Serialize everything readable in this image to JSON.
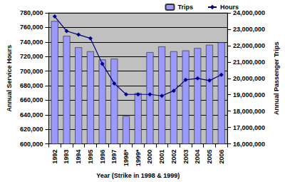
{
  "chart_data": {
    "type": "bar",
    "categories": [
      "1992",
      "1993",
      "1994",
      "1995",
      "1996",
      "1997",
      "1998*",
      "1999*",
      "2000",
      "2001",
      "2002",
      "2003",
      "2004",
      "2005",
      "2006"
    ],
    "x_label": "Year (Strike in 1998 & 1999)",
    "y_label": "Annual Service Hours",
    "y2_label": "Annual Passenger Trips",
    "series": [
      {
        "name": "Trips",
        "type": "bar",
        "axis": "y2",
        "color": "#9999FF",
        "values": [
          23500000,
          22600000,
          21900000,
          21650000,
          21150000,
          21200000,
          17700000,
          19100000,
          21600000,
          21950000,
          21650000,
          21700000,
          21850000,
          22050000,
          22200000
        ]
      },
      {
        "name": "Hours",
        "type": "line",
        "color": "#000080",
        "marker": "diamond",
        "values": [
          775000,
          755000,
          750000,
          745000,
          710000,
          683000,
          668000,
          668000,
          668000,
          666000,
          673000,
          688000,
          690000,
          687000,
          695000
        ]
      }
    ],
    "ylim": [
      600000,
      780000
    ],
    "yticks": [
      {
        "value": 600000,
        "label": "600,000"
      },
      {
        "value": 620000,
        "label": "620,000"
      },
      {
        "value": 640000,
        "label": "640,000"
      },
      {
        "value": 660000,
        "label": "660,000"
      },
      {
        "value": 680000,
        "label": "680,000"
      },
      {
        "value": 700000,
        "label": "700,000"
      },
      {
        "value": 720000,
        "label": "720,000"
      },
      {
        "value": 740000,
        "label": "740,000"
      },
      {
        "value": 760000,
        "label": "760,000"
      },
      {
        "value": 780000,
        "label": "780,000"
      }
    ],
    "y2lim": [
      16000000,
      24000000
    ],
    "y2ticks": [
      {
        "value": 16000000,
        "label": "16,000,000"
      },
      {
        "value": 17000000,
        "label": "17,000,000"
      },
      {
        "value": 18000000,
        "label": "18,000,000"
      },
      {
        "value": 19000000,
        "label": "19,000,000"
      },
      {
        "value": 20000000,
        "label": "20,000,000"
      },
      {
        "value": 21000000,
        "label": "21,000,000"
      },
      {
        "value": 22000000,
        "label": "22,000,000"
      },
      {
        "value": 23000000,
        "label": "23,000,000"
      },
      {
        "value": 24000000,
        "label": "24,000,000"
      }
    ],
    "grid": true,
    "legend": "top"
  }
}
